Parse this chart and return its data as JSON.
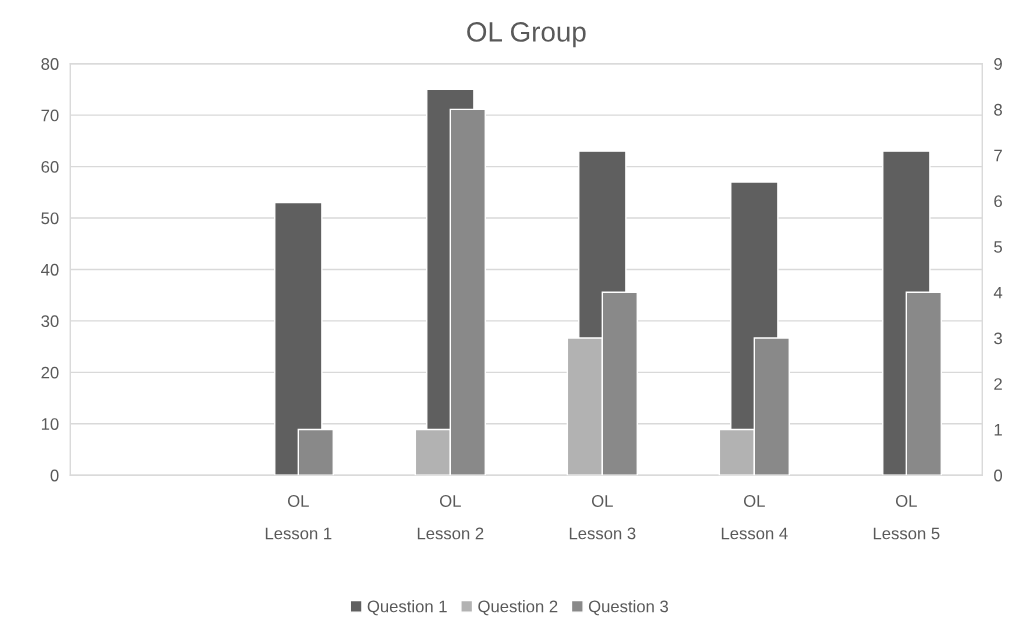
{
  "chart_data": {
    "type": "bar",
    "title": "OL Group",
    "categories": [
      null,
      "OL\nLesson 1",
      "OL\nLesson 2",
      "OL\nLesson 3",
      "OL\nLesson 4",
      "OL\nLesson 5"
    ],
    "series": [
      {
        "name": "Question 1",
        "color": "#5f5f5f",
        "values": [
          null,
          53,
          75,
          63,
          57,
          63
        ]
      },
      {
        "name": "Question 2",
        "color": "#b2b2b2",
        "axis": "y2",
        "values": [
          null,
          null,
          1,
          3,
          1,
          null
        ]
      },
      {
        "name": "Question 3",
        "color": "#898989",
        "axis": "y2",
        "values": [
          null,
          1,
          8,
          4,
          3,
          4
        ]
      }
    ],
    "ylim": [
      0,
      80
    ],
    "yticks": [
      0,
      10,
      20,
      30,
      40,
      50,
      60,
      70,
      80
    ],
    "y2lim": [
      0,
      9
    ],
    "y2ticks": [
      0,
      1,
      2,
      3,
      4,
      5,
      6,
      7,
      8,
      9
    ],
    "grid": "y",
    "legend": "bottom"
  }
}
